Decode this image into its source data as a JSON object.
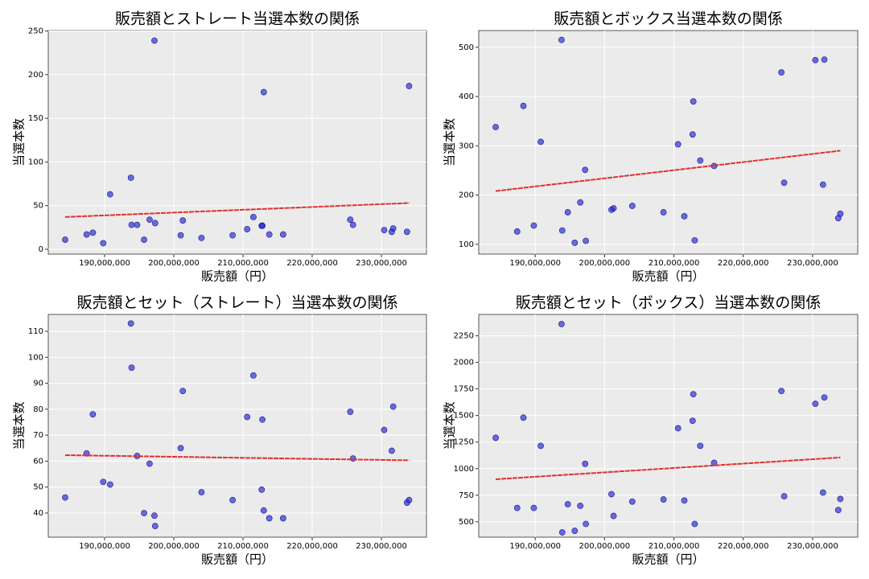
{
  "chart_data": [
    {
      "type": "scatter",
      "title": "販売額とストレート当選本数の関係",
      "x_label": "販売額（円）",
      "y_label": "当選本数",
      "x": [
        184300000,
        187400000,
        188300000,
        189800000,
        190800000,
        193800000,
        193900000,
        194700000,
        195700000,
        196500000,
        197200000,
        197300000,
        201000000,
        201300000,
        204000000,
        208500000,
        210600000,
        211500000,
        212700000,
        212800000,
        213000000,
        213800000,
        215800000,
        225500000,
        225900000,
        230400000,
        231500000,
        231700000,
        233700000,
        234000000
      ],
      "values": [
        11,
        17,
        19,
        7,
        63,
        82,
        28,
        28,
        11,
        34,
        239,
        30,
        16,
        33,
        13,
        16,
        23,
        37,
        27,
        27,
        180,
        17,
        17,
        34,
        28,
        22,
        20,
        24,
        20,
        187
      ],
      "color": "#2222dd",
      "trend": {
        "x": [
          184300000,
          234000000
        ],
        "values": [
          37,
          53
        ],
        "color": "#e03030"
      },
      "xlim": [
        181860000,
        236510000
      ],
      "ylim": [
        -5.5,
        250.5
      ],
      "xticks": [
        {
          "value": 190000000,
          "label": "190,000,000"
        },
        {
          "value": 200000000,
          "label": "200,000,000"
        },
        {
          "value": 210000000,
          "label": "210,000,000"
        },
        {
          "value": 220000000,
          "label": "220,000,000"
        },
        {
          "value": 230000000,
          "label": "230,000,000"
        }
      ],
      "yticks": [
        0,
        50,
        100,
        150,
        200,
        250
      ],
      "grid": true
    },
    {
      "type": "scatter",
      "title": "販売額とボックス当選本数の関係",
      "x_label": "販売額（円）",
      "y_label": "当選本数",
      "x": [
        184300000,
        187400000,
        188300000,
        189800000,
        190800000,
        193800000,
        193900000,
        194700000,
        195700000,
        196500000,
        197200000,
        197300000,
        201000000,
        201300000,
        204000000,
        208500000,
        210600000,
        211500000,
        212700000,
        212800000,
        213000000,
        213800000,
        215800000,
        225500000,
        225900000,
        230400000,
        231500000,
        231700000,
        233700000,
        234000000
      ],
      "values": [
        338,
        126,
        381,
        138,
        308,
        515,
        128,
        165,
        103,
        185,
        251,
        107,
        170,
        173,
        178,
        165,
        303,
        157,
        323,
        390,
        108,
        270,
        259,
        449,
        225,
        474,
        221,
        475,
        153,
        162
      ],
      "color": "#2222dd",
      "trend": {
        "x": [
          184300000,
          234000000
        ],
        "values": [
          208,
          290
        ],
        "color": "#e03030"
      },
      "xlim": [
        181860000,
        236510000
      ],
      "ylim": [
        80,
        534
      ],
      "xticks": [
        {
          "value": 190000000,
          "label": "190,000,000"
        },
        {
          "value": 200000000,
          "label": "200,000,000"
        },
        {
          "value": 210000000,
          "label": "210,000,000"
        },
        {
          "value": 220000000,
          "label": "220,000,000"
        },
        {
          "value": 230000000,
          "label": "230,000,000"
        }
      ],
      "yticks": [
        100,
        200,
        300,
        400,
        500
      ],
      "grid": true
    },
    {
      "type": "scatter",
      "title": "販売額とセット（ストレート）当選本数の関係",
      "x_label": "販売額（円）",
      "y_label": "当選本数",
      "x": [
        184300000,
        187400000,
        188300000,
        189800000,
        190800000,
        193800000,
        193900000,
        194700000,
        195700000,
        196500000,
        197200000,
        197300000,
        201000000,
        201300000,
        204000000,
        208500000,
        210600000,
        211500000,
        212700000,
        212800000,
        213000000,
        213800000,
        215800000,
        225500000,
        225900000,
        230400000,
        231500000,
        231700000,
        233700000,
        234000000
      ],
      "values": [
        46,
        63,
        78,
        52,
        51,
        113,
        96,
        62,
        40,
        59,
        39,
        35,
        65,
        87,
        48,
        45,
        77,
        93,
        49,
        76,
        41,
        38,
        38,
        79,
        61,
        72,
        64,
        81,
        44,
        45
      ],
      "color": "#2222dd",
      "trend": {
        "x": [
          184300000,
          234000000
        ],
        "values": [
          62.3,
          60.3
        ],
        "color": "#e03030"
      },
      "xlim": [
        181860000,
        236510000
      ],
      "ylim": [
        30.7,
        116.5
      ],
      "xticks": [
        {
          "value": 190000000,
          "label": "190,000,000"
        },
        {
          "value": 200000000,
          "label": "200,000,000"
        },
        {
          "value": 210000000,
          "label": "210,000,000"
        },
        {
          "value": 220000000,
          "label": "220,000,000"
        },
        {
          "value": 230000000,
          "label": "230,000,000"
        }
      ],
      "yticks": [
        40,
        50,
        60,
        70,
        80,
        90,
        100,
        110
      ],
      "grid": true
    },
    {
      "type": "scatter",
      "title": "販売額とセット（ボックス）当選本数の関係",
      "x_label": "販売額（円）",
      "y_label": "当選本数",
      "x": [
        184300000,
        187400000,
        188300000,
        189800000,
        190800000,
        193800000,
        193900000,
        194700000,
        195700000,
        196500000,
        197200000,
        197300000,
        201000000,
        201300000,
        204000000,
        208500000,
        210600000,
        211500000,
        212700000,
        212800000,
        213000000,
        213800000,
        215800000,
        225500000,
        225900000,
        230400000,
        231500000,
        231700000,
        233700000,
        234000000
      ],
      "values": [
        1290,
        630,
        1480,
        630,
        1215,
        2360,
        400,
        665,
        415,
        650,
        1045,
        480,
        760,
        555,
        690,
        710,
        1380,
        700,
        1450,
        1700,
        480,
        1215,
        1055,
        1730,
        740,
        1610,
        775,
        1670,
        610,
        715
      ],
      "color": "#2222dd",
      "trend": {
        "x": [
          184300000,
          234000000
        ],
        "values": [
          900,
          1105
        ],
        "color": "#e03030"
      },
      "xlim": [
        181860000,
        236510000
      ],
      "ylim": [
        355,
        2451
      ],
      "xticks": [
        {
          "value": 190000000,
          "label": "190,000,000"
        },
        {
          "value": 200000000,
          "label": "200,000,000"
        },
        {
          "value": 210000000,
          "label": "210,000,000"
        },
        {
          "value": 220000000,
          "label": "220,000,000"
        },
        {
          "value": 230000000,
          "label": "230,000,000"
        }
      ],
      "yticks": [
        500,
        750,
        1000,
        1250,
        1500,
        1750,
        2000,
        2250
      ],
      "grid": true
    }
  ]
}
